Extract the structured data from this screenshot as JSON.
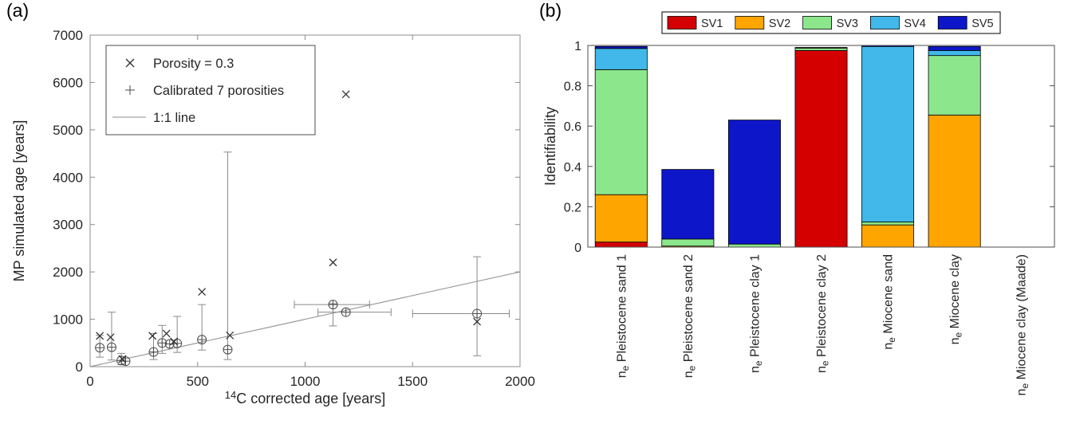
{
  "figure": {
    "panel_a_label": "(a)",
    "panel_b_label": "(b)"
  },
  "chart_data": [
    {
      "type": "scatter",
      "title": "",
      "xlabel": {
        "sup": "14",
        "text": "C corrected age [years]"
      },
      "ylabel": "MP simulated age [years]",
      "xlim": [
        0,
        2000
      ],
      "ylim": [
        0,
        7000
      ],
      "xticks": [
        0,
        500,
        1000,
        1500,
        2000
      ],
      "yticks": [
        0,
        1000,
        2000,
        3000,
        4000,
        5000,
        6000,
        7000
      ],
      "legend": [
        "Porosity = 0.3",
        "Calibrated 7 porosities",
        "1:1 line"
      ],
      "series": {
        "porosity": {
          "name": "Porosity = 0.3",
          "marker": "x",
          "points": [
            [
              45,
              650
            ],
            [
              95,
              620
            ],
            [
              150,
              160
            ],
            [
              290,
              650
            ],
            [
              355,
              700
            ],
            [
              390,
              530
            ],
            [
              520,
              1580
            ],
            [
              650,
              660
            ],
            [
              1130,
              2200
            ],
            [
              1190,
              5750
            ],
            [
              1800,
              950
            ]
          ]
        },
        "calibrated": {
          "name": "Calibrated 7 porosities",
          "marker": "plus-circle",
          "points": [
            {
              "x": 45,
              "y": 400,
              "yerr": [
                200,
                660
              ]
            },
            {
              "x": 100,
              "y": 410,
              "yerr": [
                140,
                1150
              ]
            },
            {
              "x": 145,
              "y": 130,
              "yerr": [
                40,
                280
              ]
            },
            {
              "x": 165,
              "y": 115
            },
            {
              "x": 295,
              "y": 310,
              "yerr": [
                150,
                700
              ]
            },
            {
              "x": 335,
              "y": 500,
              "yerr": [
                280,
                870
              ]
            },
            {
              "x": 370,
              "y": 480
            },
            {
              "x": 405,
              "y": 490,
              "yerr": [
                300,
                1060
              ]
            },
            {
              "x": 520,
              "y": 570,
              "yerr": [
                350,
                1310
              ]
            },
            {
              "x": 640,
              "y": 360,
              "yerr": [
                150,
                4530
              ]
            },
            {
              "x": 1130,
              "y": 1310,
              "xerr": [
                950,
                1300
              ],
              "yerr": [
                860,
                1330
              ]
            },
            {
              "x": 1190,
              "y": 1150,
              "xerr": [
                1060,
                1400
              ]
            },
            {
              "x": 1800,
              "y": 1120,
              "xerr": [
                1500,
                1950
              ],
              "yerr": [
                230,
                2320
              ]
            }
          ]
        },
        "line": {
          "name": "1:1 line",
          "points": [
            [
              0,
              0
            ],
            [
              2000,
              2000
            ]
          ]
        }
      }
    },
    {
      "type": "bar",
      "stacked": true,
      "ylabel": "Identifiability",
      "ylim": [
        0,
        1
      ],
      "yticks": [
        "0",
        "0.2",
        "0.4",
        "0.6",
        "0.8",
        "1"
      ],
      "legend_position": "top",
      "category_prefix": {
        "base": "n",
        "sub": "e"
      },
      "categories": [
        "Pleistocene sand 1",
        "Pleistocene sand 2",
        "Pleistocene clay 1",
        "Pleistocene clay 2",
        "Miocene sand",
        "Miocene clay",
        "Miocene clay (Maade)"
      ],
      "series": [
        {
          "name": "SV1",
          "color": "#d40000",
          "values": [
            0.025,
            0,
            0,
            0.975,
            0,
            0,
            0
          ]
        },
        {
          "name": "SV2",
          "color": "#ffa500",
          "values": [
            0.235,
            0.005,
            0,
            0,
            0.11,
            0.655,
            0
          ]
        },
        {
          "name": "SV3",
          "color": "#8ce78c",
          "values": [
            0.62,
            0.035,
            0.015,
            0.012,
            0.015,
            0.295,
            0
          ]
        },
        {
          "name": "SV4",
          "color": "#41b8e9",
          "values": [
            0.105,
            0,
            0,
            0,
            0.87,
            0.025,
            0
          ]
        },
        {
          "name": "SV5",
          "color": "#0d16c9",
          "values": [
            0.01,
            0.345,
            0.615,
            0.003,
            0.005,
            0.02,
            0
          ]
        }
      ]
    }
  ]
}
